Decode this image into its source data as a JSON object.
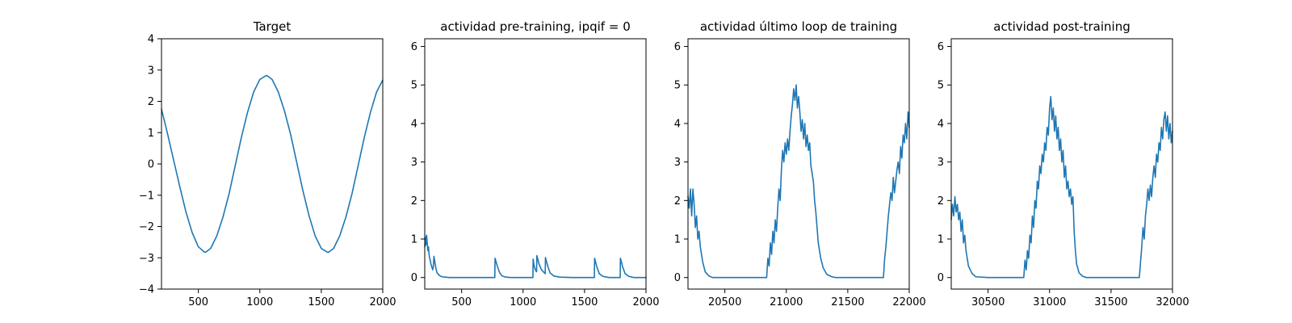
{
  "chart_data": [
    {
      "type": "line",
      "title": "Target",
      "xlabel": "",
      "ylabel": "",
      "xlim": [
        200,
        2000
      ],
      "ylim": [
        -4,
        4
      ],
      "xticks": [
        500,
        1000,
        1500,
        2000
      ],
      "xtick_labels": [
        "500",
        "1000",
        "1500",
        "2000"
      ],
      "yticks": [
        -4,
        -3,
        -2,
        -1,
        0,
        1,
        2,
        3,
        4
      ],
      "ytick_labels": [
        "−4",
        "−3",
        "−2",
        "−1",
        "0",
        "1",
        "2",
        "3",
        "4"
      ],
      "grid": false,
      "color": "#1f77b4",
      "series": [
        {
          "x": [
            200,
            250,
            300,
            350,
            400,
            450,
            500,
            550,
            560,
            600,
            650,
            700,
            750,
            800,
            850,
            900,
            950,
            1000,
            1050,
            1060,
            1100,
            1150,
            1200,
            1250,
            1300,
            1350,
            1400,
            1450,
            1500,
            1550,
            1560,
            1600,
            1650,
            1700,
            1750,
            1800,
            1850,
            1900,
            1950,
            2000
          ],
          "y": [
            1.75,
            0.95,
            0.1,
            -0.75,
            -1.55,
            -2.2,
            -2.65,
            -2.82,
            -2.82,
            -2.7,
            -2.3,
            -1.7,
            -0.95,
            -0.05,
            0.85,
            1.65,
            2.3,
            2.7,
            2.82,
            2.82,
            2.7,
            2.3,
            1.7,
            0.95,
            0.05,
            -0.85,
            -1.65,
            -2.3,
            -2.7,
            -2.82,
            -2.82,
            -2.7,
            -2.3,
            -1.7,
            -0.95,
            -0.05,
            0.85,
            1.65,
            2.3,
            2.68
          ]
        }
      ]
    },
    {
      "type": "line",
      "title": "actividad pre-training, ipqif = 0",
      "xlabel": "",
      "ylabel": "",
      "xlim": [
        200,
        2000
      ],
      "ylim": [
        -0.3,
        6.2
      ],
      "xticks": [
        500,
        1000,
        1500,
        2000
      ],
      "xtick_labels": [
        "500",
        "1000",
        "1500",
        "2000"
      ],
      "yticks": [
        0,
        1,
        2,
        3,
        4,
        5,
        6
      ],
      "ytick_labels": [
        "0",
        "1",
        "2",
        "3",
        "4",
        "5",
        "6"
      ],
      "grid": false,
      "color": "#1f77b4",
      "series": [
        {
          "x": [
            200,
            205,
            210,
            215,
            220,
            225,
            230,
            235,
            240,
            245,
            250,
            255,
            260,
            265,
            270,
            275,
            280,
            290,
            300,
            320,
            340,
            370,
            400,
            500,
            600,
            700,
            770,
            772,
            790,
            810,
            830,
            860,
            900,
            1000,
            1080,
            1082,
            1090,
            1100,
            1110,
            1112,
            1130,
            1150,
            1180,
            1182,
            1200,
            1220,
            1250,
            1300,
            1400,
            1500,
            1580,
            1582,
            1600,
            1620,
            1650,
            1700,
            1790,
            1792,
            1810,
            1830,
            1860,
            1900,
            2000
          ],
          "y": [
            0.8,
            1.05,
            0.85,
            1.1,
            0.9,
            0.7,
            0.8,
            0.6,
            0.5,
            0.45,
            0.35,
            0.3,
            0.25,
            0.2,
            0.3,
            0.55,
            0.45,
            0.25,
            0.12,
            0.05,
            0.02,
            0.01,
            0.0,
            0.0,
            0.0,
            0.0,
            0.0,
            0.5,
            0.3,
            0.12,
            0.04,
            0.01,
            0.0,
            0.0,
            0.0,
            0.48,
            0.3,
            0.2,
            0.15,
            0.57,
            0.35,
            0.2,
            0.1,
            0.52,
            0.3,
            0.12,
            0.04,
            0.01,
            0.0,
            0.0,
            0.0,
            0.5,
            0.28,
            0.1,
            0.03,
            0.0,
            0.0,
            0.5,
            0.28,
            0.1,
            0.03,
            0.0,
            0.0
          ]
        }
      ]
    },
    {
      "type": "line",
      "title": "actividad último loop de training",
      "xlabel": "",
      "ylabel": "",
      "xlim": [
        20200,
        22000
      ],
      "ylim": [
        -0.3,
        6.2
      ],
      "xticks": [
        20500,
        21000,
        21500,
        22000
      ],
      "xtick_labels": [
        "20500",
        "21000",
        "21500",
        "22000"
      ],
      "yticks": [
        0,
        1,
        2,
        3,
        4,
        5,
        6
      ],
      "ytick_labels": [
        "0",
        "1",
        "2",
        "3",
        "4",
        "5",
        "6"
      ],
      "grid": false,
      "color": "#1f77b4",
      "series": [
        {
          "x": [
            20200,
            20210,
            20220,
            20230,
            20240,
            20250,
            20260,
            20270,
            20280,
            20290,
            20300,
            20320,
            20340,
            20370,
            20400,
            20500,
            20600,
            20700,
            20800,
            20840,
            20850,
            20860,
            20870,
            20880,
            20890,
            20900,
            20910,
            20920,
            20930,
            20940,
            20950,
            20960,
            20970,
            20980,
            20990,
            21000,
            21010,
            21020,
            21030,
            21040,
            21050,
            21060,
            21070,
            21080,
            21090,
            21100,
            21110,
            21120,
            21130,
            21140,
            21150,
            21160,
            21170,
            21180,
            21190,
            21200,
            21210,
            21220,
            21230,
            21240,
            21250,
            21260,
            21280,
            21300,
            21330,
            21370,
            21400,
            21500,
            21600,
            21700,
            21790,
            21800,
            21810,
            21820,
            21830,
            21840,
            21850,
            21860,
            21870,
            21880,
            21890,
            21900,
            21910,
            21920,
            21930,
            21940,
            21950,
            21960,
            21970,
            21980,
            21990,
            22000
          ],
          "y": [
            2.1,
            1.8,
            2.3,
            1.6,
            2.3,
            1.9,
            1.3,
            1.6,
            1.0,
            1.2,
            0.8,
            0.4,
            0.15,
            0.04,
            0.0,
            0.0,
            0.0,
            0.0,
            0.0,
            0.0,
            0.5,
            0.3,
            0.9,
            0.6,
            1.2,
            0.9,
            1.5,
            1.2,
            1.8,
            2.3,
            2.0,
            2.8,
            3.3,
            3.0,
            3.5,
            3.2,
            3.6,
            3.3,
            3.8,
            4.2,
            4.5,
            4.9,
            4.6,
            5.0,
            4.4,
            4.7,
            4.3,
            3.8,
            4.1,
            3.6,
            4.0,
            3.4,
            3.7,
            3.3,
            3.5,
            2.9,
            2.7,
            2.5,
            2.0,
            1.7,
            1.3,
            0.9,
            0.5,
            0.25,
            0.08,
            0.02,
            0.0,
            0.0,
            0.0,
            0.0,
            0.0,
            0.5,
            0.8,
            1.2,
            1.6,
            1.9,
            2.2,
            2.0,
            2.6,
            2.2,
            2.5,
            2.8,
            3.0,
            2.7,
            3.4,
            3.1,
            3.7,
            3.5,
            4.0,
            3.6,
            4.3,
            3.9
          ]
        }
      ]
    },
    {
      "type": "line",
      "title": "actividad post-training",
      "xlabel": "",
      "ylabel": "",
      "xlim": [
        30200,
        32000
      ],
      "ylim": [
        -0.3,
        6.2
      ],
      "xticks": [
        30500,
        31000,
        31500,
        32000
      ],
      "xtick_labels": [
        "30500",
        "31000",
        "31500",
        "32000"
      ],
      "yticks": [
        0,
        1,
        2,
        3,
        4,
        5,
        6
      ],
      "ytick_labels": [
        "0",
        "1",
        "2",
        "3",
        "4",
        "5",
        "6"
      ],
      "grid": false,
      "color": "#1f77b4",
      "series": [
        {
          "x": [
            30200,
            30210,
            30220,
            30230,
            30240,
            30250,
            30260,
            30270,
            30280,
            30290,
            30300,
            30310,
            30320,
            30340,
            30370,
            30400,
            30500,
            30600,
            30700,
            30790,
            30800,
            30810,
            30820,
            30830,
            30840,
            30850,
            30860,
            30870,
            30880,
            30890,
            30900,
            30910,
            30920,
            30930,
            30940,
            30950,
            30960,
            30970,
            30980,
            30990,
            31000,
            31010,
            31020,
            31030,
            31040,
            31050,
            31060,
            31070,
            31080,
            31090,
            31100,
            31110,
            31120,
            31130,
            31140,
            31150,
            31160,
            31170,
            31180,
            31190,
            31200,
            31210,
            31220,
            31240,
            31270,
            31300,
            31400,
            31500,
            31600,
            31700,
            31730,
            31740,
            31750,
            31760,
            31770,
            31780,
            31790,
            31800,
            31810,
            31820,
            31830,
            31840,
            31850,
            31860,
            31870,
            31880,
            31890,
            31900,
            31910,
            31920,
            31930,
            31940,
            31950,
            31960,
            31970,
            31980,
            31990,
            32000
          ],
          "y": [
            1.5,
            1.9,
            1.6,
            2.1,
            1.7,
            1.9,
            1.5,
            1.7,
            1.2,
            1.5,
            0.9,
            1.1,
            0.7,
            0.3,
            0.1,
            0.02,
            0.0,
            0.0,
            0.0,
            0.0,
            0.45,
            0.2,
            0.7,
            0.5,
            1.1,
            0.9,
            1.6,
            1.3,
            2.0,
            1.8,
            2.5,
            2.3,
            2.9,
            2.7,
            3.2,
            3.0,
            3.5,
            3.3,
            3.9,
            3.7,
            4.4,
            4.7,
            4.1,
            4.4,
            3.8,
            4.2,
            3.6,
            3.9,
            3.3,
            3.6,
            3.0,
            3.3,
            2.6,
            2.9,
            2.3,
            2.5,
            2.1,
            2.3,
            1.9,
            2.1,
            1.2,
            0.7,
            0.35,
            0.12,
            0.03,
            0.0,
            0.0,
            0.0,
            0.0,
            0.0,
            0.0,
            0.4,
            0.8,
            1.3,
            1.0,
            1.6,
            1.9,
            2.3,
            2.0,
            2.4,
            2.1,
            2.6,
            2.9,
            2.6,
            3.2,
            3.0,
            3.5,
            3.3,
            3.9,
            3.6,
            4.1,
            4.3,
            3.8,
            4.2,
            3.6,
            4.0,
            3.5,
            3.8
          ]
        }
      ]
    }
  ]
}
